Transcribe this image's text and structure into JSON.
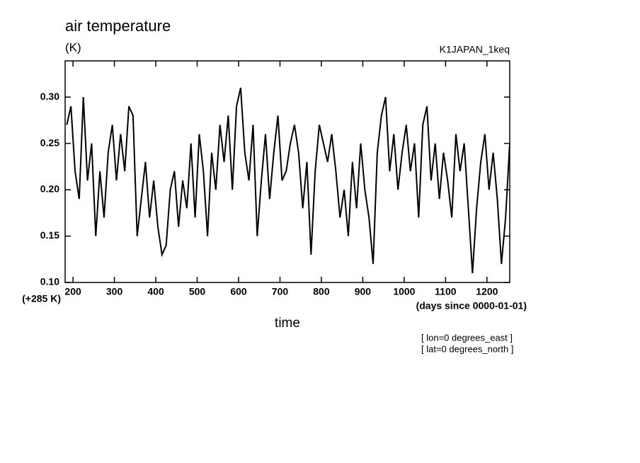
{
  "chart_data": {
    "type": "line",
    "title": "air temperature",
    "unit": "(K)",
    "dataset": "K1JAPAN_1keq",
    "y_offset_label": "(+285 K)",
    "x_units": "(days since 0000-01-01)",
    "xlabel": "time",
    "notes": [
      "[ lon=0 degrees_east ]",
      "[ lat=0 degrees_north ]"
    ],
    "color": "#000000",
    "x": [
      185,
      195,
      205,
      215,
      225,
      235,
      245,
      255,
      265,
      275,
      285,
      295,
      305,
      315,
      325,
      335,
      345,
      355,
      365,
      375,
      385,
      395,
      405,
      415,
      425,
      435,
      445,
      455,
      465,
      475,
      485,
      495,
      505,
      515,
      525,
      535,
      545,
      555,
      565,
      575,
      585,
      595,
      605,
      615,
      625,
      635,
      645,
      655,
      665,
      675,
      685,
      695,
      705,
      715,
      725,
      735,
      745,
      755,
      765,
      775,
      785,
      795,
      805,
      815,
      825,
      835,
      845,
      855,
      865,
      875,
      885,
      895,
      905,
      915,
      925,
      935,
      945,
      955,
      965,
      975,
      985,
      995,
      1005,
      1015,
      1025,
      1035,
      1045,
      1055,
      1065,
      1075,
      1085,
      1095,
      1105,
      1115,
      1125,
      1135,
      1145,
      1155,
      1165,
      1175,
      1185,
      1195,
      1205,
      1215,
      1225,
      1235,
      1245,
      1255
    ],
    "values": [
      0.27,
      0.29,
      0.22,
      0.19,
      0.3,
      0.21,
      0.25,
      0.15,
      0.22,
      0.17,
      0.24,
      0.27,
      0.21,
      0.26,
      0.22,
      0.29,
      0.28,
      0.15,
      0.19,
      0.23,
      0.17,
      0.21,
      0.16,
      0.13,
      0.14,
      0.2,
      0.22,
      0.16,
      0.21,
      0.18,
      0.25,
      0.17,
      0.26,
      0.22,
      0.15,
      0.24,
      0.2,
      0.27,
      0.23,
      0.28,
      0.2,
      0.29,
      0.31,
      0.24,
      0.21,
      0.27,
      0.15,
      0.21,
      0.26,
      0.19,
      0.24,
      0.28,
      0.21,
      0.22,
      0.25,
      0.27,
      0.24,
      0.18,
      0.23,
      0.13,
      0.22,
      0.27,
      0.25,
      0.23,
      0.26,
      0.22,
      0.17,
      0.2,
      0.15,
      0.23,
      0.18,
      0.25,
      0.2,
      0.17,
      0.12,
      0.24,
      0.28,
      0.3,
      0.22,
      0.26,
      0.2,
      0.24,
      0.27,
      0.22,
      0.25,
      0.17,
      0.27,
      0.29,
      0.21,
      0.25,
      0.19,
      0.24,
      0.21,
      0.17,
      0.26,
      0.22,
      0.25,
      0.18,
      0.11,
      0.18,
      0.23,
      0.26,
      0.2,
      0.24,
      0.19,
      0.12,
      0.17,
      0.25
    ],
    "xlim": [
      181,
      1255
    ],
    "ylim": [
      0.1,
      0.339
    ],
    "xticks": [
      200,
      300,
      400,
      500,
      600,
      700,
      800,
      900,
      1000,
      1100,
      1200
    ],
    "yticks": [
      {
        "value": 0.1,
        "label": "0.10"
      },
      0.15,
      {
        "value": 0.2,
        "label": "0.20"
      },
      0.25,
      {
        "value": 0.3,
        "label": "0.30"
      }
    ]
  }
}
